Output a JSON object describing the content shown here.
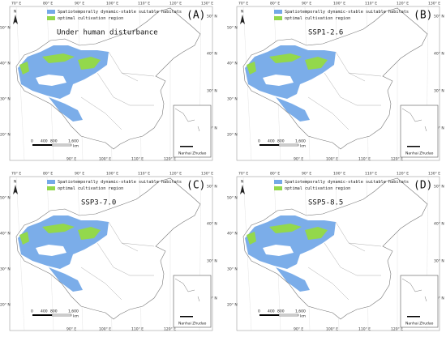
{
  "legend": {
    "items": [
      {
        "label": "Spatiotemporally dynamic-stable suitable habitats",
        "color": "#74a9e8"
      },
      {
        "label": "optimal cultivation region",
        "color": "#93d84c"
      }
    ]
  },
  "graticule": {
    "top": [
      "70° E",
      "80° E",
      "90° E",
      "100° E",
      "110° E",
      "120° E",
      "130° E"
    ],
    "left": [
      "50° N",
      "40° N",
      "30° N",
      "20° N"
    ],
    "right": [
      "50° N",
      "40° N",
      "30° N",
      "20° N"
    ],
    "bottom": [
      "90° E",
      "100° E",
      "110° E",
      "120° E"
    ]
  },
  "north": "N",
  "scale": {
    "ticks": [
      "0",
      "400",
      "800",
      "1,600"
    ],
    "unit": "km"
  },
  "inset": {
    "label": "Nanhai  Zhudao"
  },
  "panels": [
    {
      "label": "(A)",
      "scenario": "Under human disturbance"
    },
    {
      "label": "(B)",
      "scenario": "SSP1-2.6"
    },
    {
      "label": "(C)",
      "scenario": "SSP3-7.0"
    },
    {
      "label": "(D)",
      "scenario": "SSP5-8.5"
    }
  ]
}
